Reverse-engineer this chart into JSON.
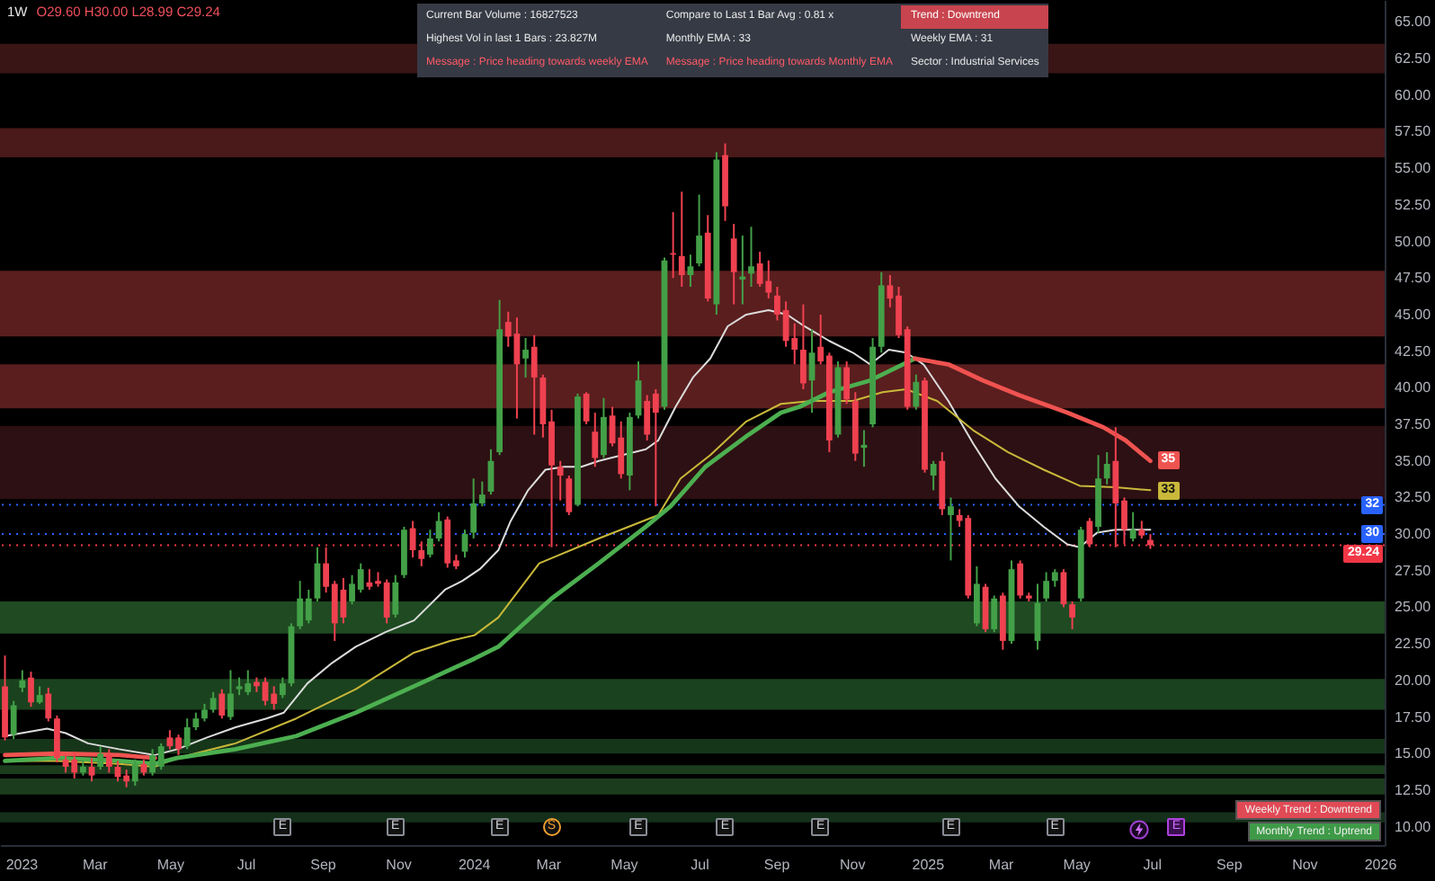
{
  "chart_data": {
    "type": "candlestick",
    "title": "1W",
    "subtitle": "O29.60 H30.00 L28.99 C29.24",
    "x": [
      "2022-12-19",
      "2022-12-26",
      "2023-01-02",
      "2023-01-09",
      "2023-01-16",
      "2023-01-23",
      "2023-01-30",
      "2023-02-06",
      "2023-02-13",
      "2023-02-20",
      "2023-02-27",
      "2023-03-06",
      "2023-03-13",
      "2023-03-20",
      "2023-03-27",
      "2023-04-03",
      "2023-04-10",
      "2023-04-17",
      "2023-04-24",
      "2023-05-01",
      "2023-05-08",
      "2023-05-15",
      "2023-05-22",
      "2023-05-29",
      "2023-06-05",
      "2023-06-12",
      "2023-06-19",
      "2023-06-26",
      "2023-07-03",
      "2023-07-10",
      "2023-07-17",
      "2023-07-24",
      "2023-07-31",
      "2023-08-07",
      "2023-08-14",
      "2023-08-21",
      "2023-08-28",
      "2023-09-04",
      "2023-09-11",
      "2023-09-18",
      "2023-09-25",
      "2023-10-02",
      "2023-10-09",
      "2023-10-16",
      "2023-10-23",
      "2023-10-30",
      "2023-11-06",
      "2023-11-13",
      "2023-11-20",
      "2023-11-27",
      "2023-12-04",
      "2023-12-11",
      "2023-12-18",
      "2023-12-25",
      "2024-01-01",
      "2024-01-08",
      "2024-01-15",
      "2024-01-22",
      "2024-01-29",
      "2024-02-05",
      "2024-02-12",
      "2024-02-19",
      "2024-02-26",
      "2024-03-04",
      "2024-03-11",
      "2024-03-18",
      "2024-03-25",
      "2024-04-01",
      "2024-04-08",
      "2024-04-15",
      "2024-04-22",
      "2024-04-29",
      "2024-05-06",
      "2024-05-13",
      "2024-05-20",
      "2024-05-27",
      "2024-06-03",
      "2024-06-10",
      "2024-06-17",
      "2024-06-24",
      "2024-07-01",
      "2024-07-08",
      "2024-07-15",
      "2024-07-22",
      "2024-07-29",
      "2024-08-05",
      "2024-08-12",
      "2024-08-19",
      "2024-08-26",
      "2024-09-02",
      "2024-09-09",
      "2024-09-16",
      "2024-09-23",
      "2024-09-30",
      "2024-10-07",
      "2024-10-14",
      "2024-10-21",
      "2024-10-28",
      "2024-11-04",
      "2024-11-11",
      "2024-11-18",
      "2024-11-25",
      "2024-12-02",
      "2024-12-09",
      "2024-12-16",
      "2024-12-23",
      "2024-12-30",
      "2025-01-06",
      "2025-01-13",
      "2025-01-20",
      "2025-01-27",
      "2025-02-03",
      "2025-02-10",
      "2025-02-17",
      "2025-02-24",
      "2025-03-03",
      "2025-03-10",
      "2025-03-17",
      "2025-03-24",
      "2025-03-31",
      "2025-04-07",
      "2025-04-14",
      "2025-04-21",
      "2025-04-28",
      "2025-05-05",
      "2025-05-12",
      "2025-05-19",
      "2025-05-26",
      "2025-06-02",
      "2025-06-09",
      "2025-06-16",
      "2025-06-23",
      "2025-06-30"
    ],
    "ohlc": [
      [
        19.6,
        21.7,
        15.9,
        16.1
      ],
      [
        16.3,
        18.6,
        16.0,
        18.3
      ],
      [
        19.5,
        20.7,
        19.2,
        20.0
      ],
      [
        20.2,
        20.6,
        18.2,
        18.5
      ],
      [
        18.5,
        19.6,
        18.4,
        19.0
      ],
      [
        19.1,
        19.5,
        17.2,
        17.4
      ],
      [
        17.4,
        17.6,
        14.4,
        14.7
      ],
      [
        14.6,
        14.9,
        13.7,
        14.1
      ],
      [
        14.6,
        15.1,
        13.3,
        13.7
      ],
      [
        13.7,
        14.5,
        13.5,
        14.1
      ],
      [
        14.1,
        14.7,
        13.1,
        13.5
      ],
      [
        14.1,
        15.5,
        13.9,
        15.0
      ],
      [
        14.9,
        15.3,
        13.7,
        14.1
      ],
      [
        14.1,
        14.5,
        13.1,
        13.4
      ],
      [
        13.5,
        13.9,
        12.7,
        13.1
      ],
      [
        13.1,
        14.6,
        12.8,
        14.3
      ],
      [
        14.3,
        14.6,
        13.5,
        13.7
      ],
      [
        13.7,
        15.3,
        13.5,
        14.9
      ],
      [
        14.1,
        15.7,
        13.9,
        15.5
      ],
      [
        16.1,
        16.6,
        15.3,
        15.5
      ],
      [
        16.1,
        16.3,
        14.9,
        15.3
      ],
      [
        15.5,
        17.4,
        15.3,
        16.8
      ],
      [
        16.8,
        17.8,
        16.6,
        17.4
      ],
      [
        17.4,
        18.4,
        17.2,
        18.0
      ],
      [
        18.0,
        19.2,
        17.8,
        18.8
      ],
      [
        19.1,
        19.4,
        17.4,
        17.6
      ],
      [
        17.5,
        20.7,
        17.3,
        19.1
      ],
      [
        19.4,
        20.2,
        19.0,
        19.6
      ],
      [
        19.2,
        20.7,
        19.0,
        19.8
      ],
      [
        19.9,
        20.2,
        19.2,
        19.6
      ],
      [
        19.9,
        20.2,
        18.3,
        18.6
      ],
      [
        19.1,
        19.6,
        18.0,
        18.4
      ],
      [
        19.0,
        20.2,
        18.8,
        19.8
      ],
      [
        19.8,
        23.9,
        19.6,
        23.7
      ],
      [
        23.7,
        26.8,
        23.5,
        25.6
      ],
      [
        24.1,
        26.2,
        23.9,
        25.6
      ],
      [
        25.6,
        29.1,
        25.4,
        28.0
      ],
      [
        28.0,
        29.1,
        26.0,
        26.4
      ],
      [
        26.6,
        26.8,
        22.7,
        23.9
      ],
      [
        26.2,
        27.0,
        23.9,
        24.3
      ],
      [
        25.4,
        27.2,
        25.2,
        26.6
      ],
      [
        26.2,
        28.0,
        26.0,
        27.6
      ],
      [
        26.7,
        27.6,
        26.2,
        26.4
      ],
      [
        26.8,
        27.4,
        26.4,
        26.6
      ],
      [
        26.7,
        26.9,
        23.9,
        24.3
      ],
      [
        24.5,
        27.2,
        24.3,
        26.7
      ],
      [
        27.2,
        30.5,
        27.0,
        30.3
      ],
      [
        30.4,
        30.9,
        28.4,
        28.9
      ],
      [
        28.9,
        29.5,
        27.8,
        28.3
      ],
      [
        28.6,
        30.3,
        28.4,
        29.7
      ],
      [
        29.7,
        31.5,
        29.5,
        30.9
      ],
      [
        31.0,
        31.2,
        27.7,
        28.0
      ],
      [
        28.2,
        28.6,
        27.6,
        27.8
      ],
      [
        28.8,
        30.3,
        28.4,
        30.0
      ],
      [
        30.1,
        33.8,
        29.7,
        32.1
      ],
      [
        32.1,
        33.6,
        31.9,
        32.7
      ],
      [
        32.9,
        35.8,
        32.7,
        35.0
      ],
      [
        35.6,
        46.0,
        35.4,
        44.0
      ],
      [
        44.5,
        45.2,
        42.8,
        43.5
      ],
      [
        43.7,
        44.8,
        37.9,
        41.6
      ],
      [
        42.0,
        43.4,
        40.7,
        42.6
      ],
      [
        42.8,
        43.6,
        36.8,
        40.7
      ],
      [
        40.7,
        40.9,
        36.6,
        37.5
      ],
      [
        37.7,
        38.5,
        29.1,
        34.7
      ],
      [
        34.6,
        35.0,
        32.3,
        34.0
      ],
      [
        33.8,
        34.0,
        31.3,
        31.5
      ],
      [
        32.0,
        39.6,
        31.9,
        39.4
      ],
      [
        39.6,
        39.7,
        37.5,
        37.7
      ],
      [
        37.0,
        38.3,
        34.6,
        35.2
      ],
      [
        35.4,
        39.3,
        35.2,
        38.0
      ],
      [
        38.1,
        38.7,
        36.0,
        36.2
      ],
      [
        36.6,
        37.7,
        33.8,
        34.1
      ],
      [
        34.0,
        38.3,
        33.0,
        38.0
      ],
      [
        38.1,
        41.8,
        37.9,
        40.5
      ],
      [
        39.1,
        39.5,
        36.4,
        36.8
      ],
      [
        39.6,
        39.9,
        31.9,
        38.3
      ],
      [
        38.7,
        48.9,
        38.5,
        48.7
      ],
      [
        49.2,
        52.0,
        47.5,
        49.1
      ],
      [
        49.0,
        53.4,
        46.9,
        47.7
      ],
      [
        47.7,
        49.1,
        46.9,
        48.3
      ],
      [
        48.5,
        53.2,
        48.3,
        50.4
      ],
      [
        50.6,
        51.8,
        45.9,
        46.1
      ],
      [
        45.7,
        56.1,
        45.0,
        55.6
      ],
      [
        55.9,
        56.7,
        51.4,
        52.4
      ],
      [
        50.2,
        51.2,
        45.7,
        47.9
      ],
      [
        47.4,
        50.4,
        45.7,
        47.6
      ],
      [
        47.8,
        51.0,
        46.9,
        48.3
      ],
      [
        48.5,
        49.3,
        46.9,
        47.1
      ],
      [
        47.3,
        48.7,
        46.1,
        46.5
      ],
      [
        46.3,
        46.9,
        44.6,
        45.0
      ],
      [
        45.3,
        45.9,
        42.8,
        43.2
      ],
      [
        43.4,
        44.4,
        41.6,
        42.6
      ],
      [
        42.6,
        45.7,
        39.9,
        40.3
      ],
      [
        40.5,
        44.0,
        38.3,
        42.4
      ],
      [
        42.8,
        45.0,
        41.6,
        41.8
      ],
      [
        42.2,
        42.4,
        35.6,
        36.4
      ],
      [
        36.8,
        41.8,
        36.6,
        41.4
      ],
      [
        41.4,
        41.8,
        38.9,
        39.2
      ],
      [
        39.1,
        39.7,
        35.0,
        35.5
      ],
      [
        35.9,
        37.1,
        34.6,
        36.1
      ],
      [
        37.5,
        43.4,
        37.3,
        42.8
      ],
      [
        42.8,
        47.9,
        42.4,
        47.0
      ],
      [
        47.0,
        47.7,
        45.5,
        46.1
      ],
      [
        46.3,
        46.9,
        43.4,
        43.6
      ],
      [
        44.0,
        44.2,
        38.5,
        38.7
      ],
      [
        38.7,
        40.9,
        38.5,
        40.4
      ],
      [
        40.5,
        40.7,
        34.2,
        34.4
      ],
      [
        34.0,
        35.0,
        33.0,
        34.8
      ],
      [
        35.0,
        35.6,
        31.3,
        31.7
      ],
      [
        31.3,
        32.5,
        28.2,
        31.9
      ],
      [
        31.3,
        31.7,
        30.5,
        30.9
      ],
      [
        31.1,
        31.3,
        25.6,
        25.8
      ],
      [
        23.9,
        27.8,
        23.7,
        26.6
      ],
      [
        26.4,
        26.6,
        23.3,
        23.5
      ],
      [
        23.5,
        25.8,
        23.3,
        25.6
      ],
      [
        25.8,
        26.0,
        22.1,
        22.7
      ],
      [
        22.7,
        28.2,
        22.5,
        27.6
      ],
      [
        28.0,
        28.2,
        25.6,
        25.8
      ],
      [
        25.8,
        26.0,
        25.4,
        25.6
      ],
      [
        22.7,
        26.6,
        22.1,
        25.3
      ],
      [
        25.6,
        27.4,
        25.4,
        26.8
      ],
      [
        26.8,
        27.6,
        26.4,
        27.4
      ],
      [
        27.4,
        27.6,
        25.0,
        25.2
      ],
      [
        25.2,
        25.4,
        23.5,
        24.3
      ],
      [
        25.6,
        30.5,
        25.4,
        30.3
      ],
      [
        30.9,
        31.1,
        29.1,
        29.3
      ],
      [
        30.5,
        35.4,
        30.1,
        33.8
      ],
      [
        33.8,
        35.6,
        33.4,
        34.8
      ],
      [
        35.0,
        37.3,
        29.1,
        32.1
      ],
      [
        32.3,
        32.5,
        29.3,
        30.3
      ],
      [
        29.7,
        31.5,
        29.5,
        30.3
      ],
      [
        30.3,
        30.9,
        29.7,
        29.9
      ],
      [
        29.6,
        30.0,
        28.99,
        29.24
      ]
    ],
    "colors": [
      "#ef4150",
      "#43a047",
      "#43a047",
      "#ef4150",
      "#43a047",
      "#ef4150",
      "#ef4150",
      "#ef4150",
      "#ef4150",
      "#43a047",
      "#ef4150",
      "#43a047",
      "#ef4150",
      "#ef4150",
      "#ef4150",
      "#43a047",
      "#ef4150",
      "#43a047",
      "#43a047",
      "#ef4150",
      "#ef4150",
      "#43a047",
      "#43a047",
      "#43a047",
      "#43a047",
      "#ef4150",
      "#43a047",
      "#43a047",
      "#43a047",
      "#ef4150",
      "#ef4150",
      "#ef4150",
      "#43a047",
      "#43a047",
      "#43a047",
      "#43a047",
      "#43a047",
      "#ef4150",
      "#ef4150",
      "#ef4150",
      "#43a047",
      "#43a047",
      "#ef4150",
      "#ef4150",
      "#ef4150",
      "#43a047",
      "#43a047",
      "#ef4150",
      "#ef4150",
      "#43a047",
      "#43a047",
      "#ef4150",
      "#ef4150",
      "#43a047",
      "#43a047",
      "#43a047",
      "#43a047",
      "#43a047",
      "#ef4150",
      "#ef4150",
      "#43a047",
      "#ef4150",
      "#ef4150",
      "#ef4150",
      "#ef4150",
      "#ef4150",
      "#43a047",
      "#ef4150",
      "#ef4150",
      "#43a047",
      "#ef4150",
      "#ef4150",
      "#43a047",
      "#43a047",
      "#ef4150",
      "#ef4150",
      "#43a047",
      "#ef4150",
      "#ef4150",
      "#43a047",
      "#43a047",
      "#ef4150",
      "#43a047",
      "#ef4150",
      "#ef4150",
      "#43a047",
      "#43a047",
      "#ef4150",
      "#ef4150",
      "#ef4150",
      "#ef4150",
      "#ef4150",
      "#ef4150",
      "#43a047",
      "#ef4150",
      "#ef4150",
      "#43a047",
      "#ef4150",
      "#ef4150",
      "#43a047",
      "#43a047",
      "#43a047",
      "#ef4150",
      "#ef4150",
      "#ef4150",
      "#43a047",
      "#ef4150",
      "#43a047",
      "#ef4150",
      "#43a047",
      "#ef4150",
      "#ef4150",
      "#43a047",
      "#ef4150",
      "#43a047",
      "#ef4150",
      "#43a047",
      "#ef4150",
      "#ef4150",
      "#43a047",
      "#43a047",
      "#43a047",
      "#ef4150",
      "#ef4150",
      "#43a047",
      "#ef4150",
      "#43a047",
      "#43a047",
      "#ef4150",
      "#ef4150",
      "#43a047",
      "#ef4150",
      "#ef4150"
    ],
    "series": [
      {
        "type": "line",
        "color": "#dcdcdc",
        "x": [
          "2022-12-19",
          "2023-01-22",
          "2023-02-06",
          "2023-02-24",
          "2023-03-21",
          "2023-04-19",
          "2023-05-07",
          "2023-05-31",
          "2023-06-23",
          "2023-07-18",
          "2023-08-01",
          "2023-08-20",
          "2023-09-09",
          "2023-09-28",
          "2023-10-22",
          "2023-11-14",
          "2023-12-09",
          "2023-12-23",
          "2024-01-06",
          "2024-01-21",
          "2024-01-31",
          "2024-02-14",
          "2024-02-28",
          "2024-03-14",
          "2024-03-28",
          "2024-04-11",
          "2024-04-30",
          "2024-05-19",
          "2024-05-29",
          "2024-06-12",
          "2024-06-26",
          "2024-07-10",
          "2024-07-24",
          "2024-08-08",
          "2024-08-26",
          "2024-09-10",
          "2024-09-24",
          "2024-10-14",
          "2024-11-02",
          "2024-11-16",
          "2024-12-01",
          "2024-12-15",
          "2024-12-29",
          "2025-01-18",
          "2025-02-07",
          "2025-02-25",
          "2025-03-16",
          "2025-04-05",
          "2025-04-24",
          "2025-05-04",
          "2025-05-18",
          "2025-06-02",
          "2025-06-20",
          "2025-06-30"
        ],
        "values": [
          16.2,
          16.7,
          16.4,
          15.7,
          15.3,
          14.9,
          15.3,
          16.1,
          16.8,
          17.4,
          17.8,
          19.8,
          21.2,
          22.3,
          23.3,
          24.1,
          26.2,
          26.8,
          27.6,
          28.9,
          30.9,
          33.0,
          34.4,
          34.6,
          34.6,
          35.0,
          35.4,
          35.8,
          36.4,
          38.7,
          40.7,
          42.0,
          44.2,
          45.0,
          45.3,
          45.0,
          44.2,
          43.2,
          42.4,
          41.6,
          42.6,
          42.4,
          41.6,
          39.1,
          36.2,
          33.8,
          31.9,
          30.5,
          29.3,
          29.1,
          30.1,
          30.3,
          30.3,
          30.3
        ]
      },
      {
        "type": "line",
        "color": "#c9b83a",
        "x": [
          "2022-12-19",
          "2023-01-31",
          "2023-03-21",
          "2023-04-19",
          "2023-05-07",
          "2023-06-23",
          "2023-08-11",
          "2023-09-28",
          "2023-11-14",
          "2023-12-13",
          "2024-01-02",
          "2024-01-21",
          "2024-02-23",
          "2024-04-11",
          "2024-05-29",
          "2024-06-16",
          "2024-07-10",
          "2024-08-08",
          "2024-09-05",
          "2024-09-30",
          "2024-11-02",
          "2024-11-26",
          "2024-12-15",
          "2025-01-09",
          "2025-02-07",
          "2025-03-07",
          "2025-04-05",
          "2025-05-04",
          "2025-06-02",
          "2025-06-30"
        ],
        "values": [
          14.5,
          14.5,
          14.3,
          14.1,
          14.7,
          15.7,
          17.4,
          19.4,
          21.9,
          22.7,
          23.1,
          24.3,
          28.0,
          29.7,
          31.3,
          33.8,
          35.4,
          37.7,
          38.9,
          39.1,
          39.1,
          39.7,
          39.9,
          39.1,
          37.1,
          35.6,
          34.4,
          33.3,
          33.2,
          33.0
        ],
        "value_labels": [
          null,
          null,
          null,
          null,
          null,
          null,
          null,
          null,
          null,
          null,
          null,
          null,
          null,
          null,
          null,
          null,
          null,
          null,
          null,
          null,
          null,
          null,
          null,
          null,
          null,
          null,
          null,
          null,
          null,
          "33"
        ]
      },
      {
        "type": "line",
        "color": "#4caf50",
        "x": [
          "2022-12-19",
          "2023-01-31",
          "2023-03-21",
          "2023-04-19",
          "2023-05-07",
          "2023-06-23",
          "2023-08-11",
          "2023-09-28",
          "2023-11-14",
          "2024-01-02",
          "2024-01-21",
          "2024-03-04",
          "2024-04-11",
          "2024-05-19",
          "2024-06-08",
          "2024-07-06",
          "2024-08-10",
          "2024-09-05",
          "2024-09-20",
          "2024-10-14",
          "2024-11-16",
          "2024-12-22"
        ],
        "values": [
          14.5,
          14.7,
          14.5,
          14.3,
          14.7,
          15.3,
          16.2,
          17.8,
          19.6,
          21.5,
          22.3,
          25.6,
          28.0,
          30.5,
          31.9,
          34.6,
          36.8,
          38.3,
          38.7,
          39.7,
          40.5,
          42.0
        ]
      },
      {
        "type": "line",
        "color": "#ef5350",
        "x": [
          "2022-12-19",
          "2023-01-31",
          "2023-03-21",
          "2023-04-19",
          "2023-06-01",
          "2024-12-22",
          "2025-01-18",
          "2025-02-15",
          "2025-03-16",
          "2025-04-24",
          "2025-05-23",
          "2025-06-10",
          "2025-06-30"
        ],
        "values": [
          14.9,
          15.0,
          14.9,
          14.7,
          null,
          42.0,
          41.6,
          40.5,
          39.5,
          38.3,
          37.3,
          36.4,
          35.0
        ],
        "value_labels": [
          null,
          null,
          null,
          null,
          null,
          null,
          null,
          null,
          null,
          null,
          null,
          null,
          "35"
        ]
      }
    ],
    "xlim": [
      "2022-12-15",
      "2026-01-05"
    ],
    "xticks": [
      {
        "value": "2023-01-01",
        "label": "2023"
      },
      {
        "value": "2023-03-01",
        "label": "Mar"
      },
      {
        "value": "2023-05-01",
        "label": "May"
      },
      {
        "value": "2023-07-01",
        "label": "Jul"
      },
      {
        "value": "2023-09-01",
        "label": "Sep"
      },
      {
        "value": "2023-11-01",
        "label": "Nov"
      },
      {
        "value": "2024-01-01",
        "label": "2024"
      },
      {
        "value": "2024-03-01",
        "label": "Mar"
      },
      {
        "value": "2024-05-01",
        "label": "May"
      },
      {
        "value": "2024-07-01",
        "label": "Jul"
      },
      {
        "value": "2024-09-01",
        "label": "Sep"
      },
      {
        "value": "2024-11-01",
        "label": "Nov"
      },
      {
        "value": "2025-01-01",
        "label": "2025"
      },
      {
        "value": "2025-03-01",
        "label": "Mar"
      },
      {
        "value": "2025-05-01",
        "label": "May"
      },
      {
        "value": "2025-07-01",
        "label": "Jul"
      },
      {
        "value": "2025-09-01",
        "label": "Sep"
      },
      {
        "value": "2025-11-01",
        "label": "Nov"
      },
      {
        "value": "2026-01-01",
        "label": "2026"
      }
    ],
    "ylim": [
      8.75,
      66.5
    ],
    "yticks": [
      {
        "value": 10,
        "label": "10.00"
      },
      {
        "value": 12.5,
        "label": "12.50"
      },
      {
        "value": 15,
        "label": "15.00"
      },
      {
        "value": 17.5,
        "label": "17.50"
      },
      {
        "value": 20,
        "label": "20.00"
      },
      {
        "value": 22.5,
        "label": "22.50"
      },
      {
        "value": 25,
        "label": "25.00"
      },
      {
        "value": 27.5,
        "label": "27.50"
      },
      {
        "value": 30,
        "label": "30.00"
      },
      {
        "value": 32.5,
        "label": "32.50"
      },
      {
        "value": 35,
        "label": "35.00"
      },
      {
        "value": 37.5,
        "label": "37.50"
      },
      {
        "value": 40,
        "label": "40.00"
      },
      {
        "value": 42.5,
        "label": "42.50"
      },
      {
        "value": 45,
        "label": "45.00"
      },
      {
        "value": 47.5,
        "label": "47.50"
      },
      {
        "value": 50,
        "label": "50.00"
      },
      {
        "value": 52.5,
        "label": "52.50"
      },
      {
        "value": 55,
        "label": "55.00"
      },
      {
        "value": 57.5,
        "label": "57.50"
      },
      {
        "value": 60,
        "label": "60.00"
      },
      {
        "value": 62.5,
        "label": "62.50"
      },
      {
        "value": 65,
        "label": "65.00"
      }
    ],
    "bands": [
      {
        "axis": "y",
        "from": 61.5,
        "to": 63.5,
        "color": "#3a1515"
      },
      {
        "axis": "y",
        "from": 55.75,
        "to": 57.75,
        "color": "#4a1919"
      },
      {
        "axis": "y",
        "from": 43.5,
        "to": 48,
        "color": "#5a1e1e"
      },
      {
        "axis": "y",
        "from": 38.6,
        "to": 41.6,
        "color": "#5a1e1e"
      },
      {
        "axis": "y",
        "from": 32.4,
        "to": 37.4,
        "color": "#2d1013"
      },
      {
        "axis": "y",
        "from": 23.2,
        "to": 25.4,
        "color": "#1f4a22"
      },
      {
        "axis": "y",
        "from": 18,
        "to": 20.1,
        "color": "#1b421e"
      },
      {
        "axis": "y",
        "from": 15,
        "to": 16,
        "color": "#16361a"
      },
      {
        "axis": "y",
        "from": 13.6,
        "to": 14.2,
        "color": "#1b3d1e"
      },
      {
        "axis": "y",
        "from": 12.2,
        "to": 13.3,
        "color": "#1b3d1e"
      },
      {
        "axis": "y",
        "from": 10.3,
        "to": 11,
        "color": "#15301a"
      }
    ],
    "ref_lines": [
      {
        "axis": "y",
        "value": 32,
        "label": "32",
        "color": "#2962ff",
        "line_style": "dotted"
      },
      {
        "axis": "y",
        "value": 30,
        "label": "30",
        "color": "#2962ff",
        "line_style": "dotted"
      },
      {
        "axis": "y",
        "value": 29.24,
        "label": "29.24",
        "color": "#f23645",
        "line_style": "dotted"
      }
    ],
    "annotations": [
      "Current Bar Volume : 16827523",
      "Compare to Last 1 Bar Avg : 0.81 x",
      "Trend : Downtrend",
      "Highest Vol in last 1 Bars : 23.827M",
      "Monthly EMA : 33",
      "Weekly EMA : 31",
      "Message : Price heading towards weekly EMA",
      "Message : Price heading towards Monthly EMA",
      "Sector : Industrial Services",
      "Weekly Trend : Downtrend",
      "Monthly Trend : Uptrend",
      {
        "text": "E",
        "x": "2023-07-31"
      },
      {
        "text": "E",
        "x": "2023-10-30"
      },
      {
        "text": "E",
        "x": "2024-01-22"
      },
      {
        "text": "S",
        "x": "2024-03-04"
      },
      {
        "text": "E",
        "x": "2024-05-13"
      },
      {
        "text": "E",
        "x": "2024-07-22"
      },
      {
        "text": "E",
        "x": "2024-10-07"
      },
      {
        "text": "E",
        "x": "2025-01-20"
      },
      {
        "text": "E",
        "x": "2025-04-14"
      },
      {
        "text": "E",
        "x": "2025-07-21"
      }
    ]
  }
}
